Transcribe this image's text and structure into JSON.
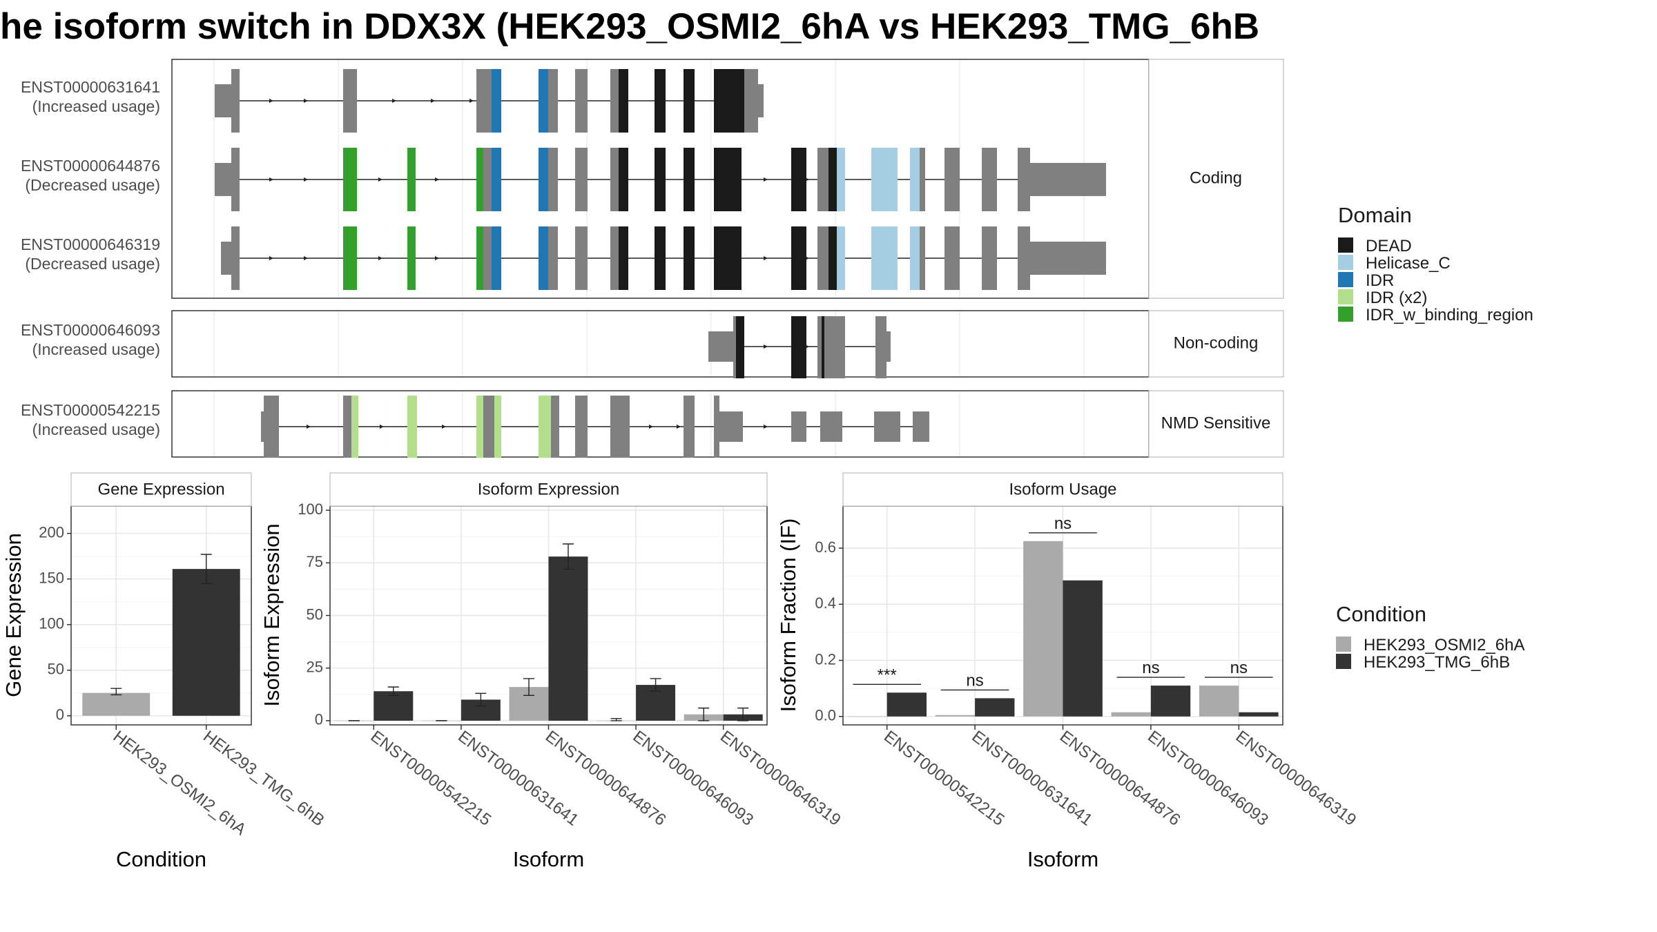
{
  "title": "he isoform switch in DDX3X (HEK293_OSMI2_6hA vs HEK293_TMG_6hB",
  "structure": {
    "groups": [
      "Coding",
      "Non-coding",
      "NMD Sensitive"
    ],
    "transcripts": [
      {
        "id": "ENST00000631641",
        "usage": "(Increased usage)",
        "group": 0
      },
      {
        "id": "ENST00000644876",
        "usage": "(Decreased usage)",
        "group": 0
      },
      {
        "id": "ENST00000646319",
        "usage": "(Decreased usage)",
        "group": 0
      },
      {
        "id": "ENST00000646093",
        "usage": "(Increased usage)",
        "group": 1
      },
      {
        "id": "ENST00000542215",
        "usage": "(Increased usage)",
        "group": 2
      }
    ]
  },
  "domain_legend": {
    "title": "Domain",
    "items": [
      {
        "label": "DEAD",
        "color": "#1a1a1a"
      },
      {
        "label": "Helicase_C",
        "color": "#a6cee3"
      },
      {
        "label": "IDR",
        "color": "#1f78b4"
      },
      {
        "label": "IDR (x2)",
        "color": "#b2df8a"
      },
      {
        "label": "IDR_w_binding_region",
        "color": "#33a02c"
      }
    ]
  },
  "condition_legend": {
    "title": "Condition",
    "items": [
      {
        "label": "HEK293_OSMI2_6hA",
        "color": "#aaaaaa"
      },
      {
        "label": "HEK293_TMG_6hB",
        "color": "#333333"
      }
    ]
  },
  "chart_data": [
    {
      "type": "bar",
      "title": "Gene Expression",
      "xlabel": "Condition",
      "ylabel": "Gene Expression",
      "categories": [
        "HEK293_OSMI2_6hA",
        "HEK293_TMG_6hB"
      ],
      "values": [
        25,
        161
      ],
      "errors": [
        [
          23,
          30
        ],
        [
          145,
          177
        ]
      ],
      "ylim": [
        -10,
        230
      ],
      "yticks": [
        0,
        50,
        100,
        150,
        200
      ]
    },
    {
      "type": "bar",
      "title": "Isoform Expression",
      "xlabel": "Isoform",
      "ylabel": "Isoform Expression",
      "categories": [
        "ENST00000542215",
        "ENST00000631641",
        "ENST00000644876",
        "ENST00000646093",
        "ENST00000646319"
      ],
      "series": [
        {
          "name": "HEK293_OSMI2_6hA",
          "values": [
            0,
            0,
            16,
            0,
            3
          ],
          "errors": [
            [
              0,
              0
            ],
            [
              0,
              0
            ],
            [
              12,
              20
            ],
            [
              0,
              1
            ],
            [
              0,
              6
            ]
          ]
        },
        {
          "name": "HEK293_TMG_6hB",
          "values": [
            14,
            10,
            78,
            17,
            3
          ],
          "errors": [
            [
              12,
              16
            ],
            [
              7,
              13
            ],
            [
              72,
              84
            ],
            [
              14,
              20
            ],
            [
              0,
              6
            ]
          ]
        }
      ],
      "ylim": [
        -2,
        102
      ],
      "yticks": [
        0,
        25,
        50,
        75,
        100
      ]
    },
    {
      "type": "bar",
      "title": "Isoform Usage",
      "xlabel": "Isoform",
      "ylabel": "Isoform Fraction (IF)",
      "categories": [
        "ENST00000542215",
        "ENST00000631641",
        "ENST00000644876",
        "ENST00000646093",
        "ENST00000646319"
      ],
      "series": [
        {
          "name": "HEK293_OSMI2_6hA",
          "values": [
            0.0,
            0.005,
            0.625,
            0.015,
            0.11
          ]
        },
        {
          "name": "HEK293_TMG_6hB",
          "values": [
            0.085,
            0.065,
            0.485,
            0.11,
            0.015
          ]
        }
      ],
      "significance": [
        "***",
        "ns",
        "ns",
        "ns",
        "ns"
      ],
      "ylim": [
        -0.03,
        0.75
      ],
      "yticks": [
        "0.0",
        "0.2",
        "0.4",
        "0.6"
      ]
    }
  ]
}
